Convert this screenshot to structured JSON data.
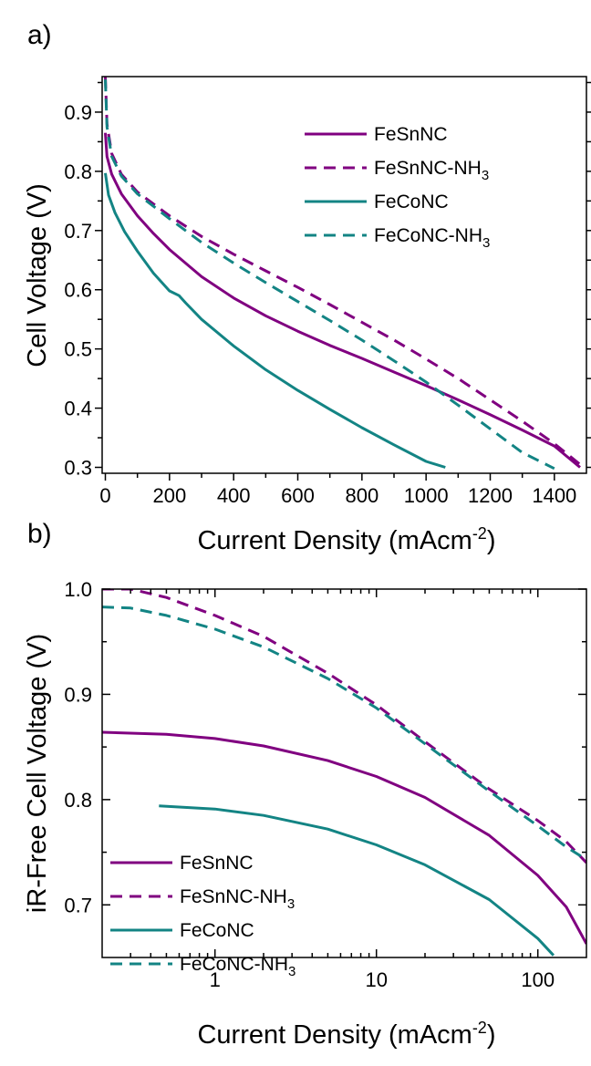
{
  "colors": {
    "purple": "#800080",
    "teal": "#138484",
    "axis": "#000000"
  },
  "chart_data": [
    {
      "panel_label": "a)",
      "type": "line",
      "xlabel": "Current Density (mAcm",
      "xlabel_sup": "-2",
      "xlabel_tail": ")",
      "ylabel": "Cell Voltage (V)",
      "xlim": [
        -10,
        1500
      ],
      "ylim": [
        0.29,
        0.96
      ],
      "x_ticks": [
        0,
        200,
        400,
        600,
        800,
        1000,
        1200,
        1400
      ],
      "x_tick_labels": [
        "0",
        "200",
        "400",
        "600",
        "800",
        "1000",
        "1200",
        "1400"
      ],
      "y_ticks": [
        0.3,
        0.4,
        0.5,
        0.6,
        0.7,
        0.8,
        0.9
      ],
      "y_tick_labels": [
        "0.3",
        "0.4",
        "0.5",
        "0.6",
        "0.7",
        "0.8",
        "0.9"
      ],
      "legend_position": "top-right",
      "series": [
        {
          "name": "FeSnNC",
          "name_sub": "",
          "style": "solid",
          "color": "purple",
          "x": [
            0,
            5,
            20,
            50,
            100,
            150,
            200,
            300,
            400,
            500,
            600,
            700,
            800,
            900,
            1000,
            1100,
            1200,
            1300,
            1400,
            1480
          ],
          "y": [
            0.865,
            0.825,
            0.795,
            0.762,
            0.725,
            0.695,
            0.668,
            0.622,
            0.586,
            0.556,
            0.53,
            0.506,
            0.484,
            0.461,
            0.438,
            0.414,
            0.389,
            0.363,
            0.336,
            0.3
          ]
        },
        {
          "name": "FeSnNC-NH",
          "name_sub": "3",
          "style": "dashed",
          "color": "purple",
          "x": [
            0,
            5,
            20,
            50,
            100,
            200,
            300,
            400,
            500,
            600,
            700,
            800,
            900,
            1000,
            1100,
            1200,
            1300,
            1400,
            1480
          ],
          "y": [
            0.96,
            0.88,
            0.83,
            0.795,
            0.765,
            0.725,
            0.69,
            0.66,
            0.632,
            0.604,
            0.575,
            0.545,
            0.515,
            0.483,
            0.45,
            0.414,
            0.378,
            0.34,
            0.305
          ]
        },
        {
          "name": "FeCoNC",
          "name_sub": "",
          "style": "solid",
          "color": "teal",
          "x": [
            0,
            10,
            30,
            60,
            100,
            150,
            200,
            230,
            250,
            300,
            400,
            500,
            600,
            700,
            800,
            900,
            1000,
            1060
          ],
          "y": [
            0.797,
            0.76,
            0.73,
            0.698,
            0.665,
            0.628,
            0.598,
            0.59,
            0.578,
            0.55,
            0.505,
            0.465,
            0.43,
            0.398,
            0.367,
            0.338,
            0.31,
            0.3
          ]
        },
        {
          "name": "FeCoNC-NH",
          "name_sub": "3",
          "style": "dashed",
          "color": "teal",
          "x": [
            0,
            5,
            20,
            50,
            100,
            200,
            300,
            400,
            500,
            600,
            700,
            800,
            900,
            1000,
            1100,
            1200,
            1300,
            1400
          ],
          "y": [
            0.955,
            0.875,
            0.825,
            0.792,
            0.762,
            0.72,
            0.68,
            0.645,
            0.612,
            0.58,
            0.548,
            0.515,
            0.48,
            0.444,
            0.405,
            0.365,
            0.325,
            0.298
          ]
        }
      ]
    },
    {
      "panel_label": "b)",
      "type": "line",
      "x_scale": "log",
      "xlabel": "Current Density (mAcm",
      "xlabel_sup": "-2",
      "xlabel_tail": ")",
      "ylabel": "iR-Free Cell Voltage (V)",
      "xlim": [
        0.2,
        200
      ],
      "ylim": [
        0.65,
        1.0
      ],
      "x_ticks": [
        1,
        10,
        100
      ],
      "x_tick_labels": [
        "1",
        "10",
        "100"
      ],
      "y_ticks": [
        0.7,
        0.8,
        0.9,
        1.0
      ],
      "y_tick_labels": [
        "0.7",
        "0.8",
        "0.9",
        "1.0"
      ],
      "legend_position": "bottom-left",
      "series": [
        {
          "name": "FeSnNC",
          "name_sub": "",
          "style": "solid",
          "color": "purple",
          "x": [
            0.2,
            0.5,
            1,
            2,
            5,
            10,
            20,
            50,
            100,
            150,
            200
          ],
          "y": [
            0.864,
            0.862,
            0.858,
            0.851,
            0.837,
            0.822,
            0.802,
            0.766,
            0.728,
            0.698,
            0.663
          ]
        },
        {
          "name": "FeSnNC-NH",
          "name_sub": "3",
          "style": "dashed",
          "color": "purple",
          "x": [
            0.2,
            0.3,
            0.5,
            1,
            2,
            5,
            10,
            20,
            50,
            100,
            150,
            200
          ],
          "y": [
            1.0,
            1.0,
            0.992,
            0.975,
            0.955,
            0.92,
            0.89,
            0.855,
            0.81,
            0.78,
            0.76,
            0.74
          ]
        },
        {
          "name": "FeCoNC",
          "name_sub": "",
          "style": "solid",
          "color": "teal",
          "x": [
            0.45,
            1,
            2,
            5,
            10,
            20,
            50,
            100,
            125
          ],
          "y": [
            0.794,
            0.791,
            0.785,
            0.772,
            0.757,
            0.738,
            0.705,
            0.668,
            0.652
          ]
        },
        {
          "name": "FeCoNC-NH",
          "name_sub": "3",
          "style": "dashed",
          "color": "teal",
          "x": [
            0.2,
            0.3,
            0.5,
            1,
            2,
            5,
            10,
            20,
            50,
            100,
            150,
            200
          ],
          "y": [
            0.983,
            0.982,
            0.975,
            0.962,
            0.945,
            0.915,
            0.887,
            0.853,
            0.808,
            0.775,
            0.755,
            0.743
          ]
        }
      ]
    }
  ]
}
